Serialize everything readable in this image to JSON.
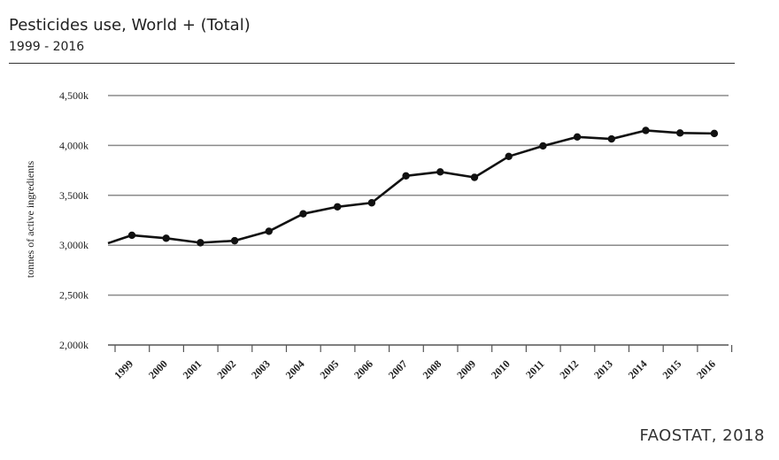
{
  "header": {
    "title": "Pesticides use, World + (Total)",
    "subtitle": "1999 - 2016"
  },
  "footer": {
    "source": "FAOSTAT, 2018"
  },
  "chart_data": {
    "type": "line",
    "ylabel": "tonnes of active ingredients",
    "ylim": [
      2000,
      4500
    ],
    "y_ticks": [
      2000,
      2500,
      3000,
      3500,
      4000,
      4500
    ],
    "y_tick_labels": [
      "2,000k",
      "2,500k",
      "3,000k",
      "3,500k",
      "4,000k",
      "4,500k"
    ],
    "grid": true,
    "categories": [
      "1999",
      "2000",
      "2001",
      "2002",
      "2003",
      "2004",
      "2005",
      "2006",
      "2007",
      "2008",
      "2009",
      "2010",
      "2011",
      "2012",
      "2013",
      "2014",
      "2015",
      "2016"
    ],
    "start_value": 3020,
    "values": [
      3100,
      3070,
      3025,
      3045,
      3140,
      3315,
      3385,
      3425,
      3695,
      3735,
      3680,
      3890,
      3995,
      4085,
      4065,
      4150,
      4125,
      4120
    ],
    "line_color": "#111111"
  }
}
